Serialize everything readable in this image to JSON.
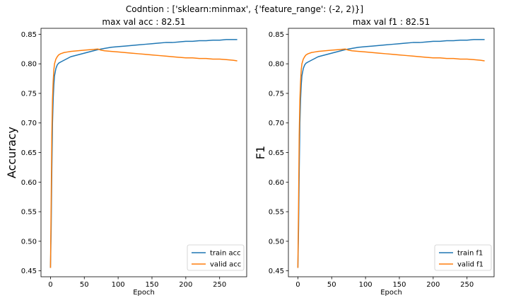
{
  "suptitle": "Codntion : ['sklearn:minmax', {'feature_range': (-2, 2)}]",
  "colors": {
    "train": "#1f77b4",
    "valid": "#ff7f0e"
  },
  "chart_data": [
    {
      "type": "line",
      "title": "max val acc : 82.51",
      "xlabel": "Epoch",
      "ylabel": "Accuracy",
      "xlim": [
        -14,
        290
      ],
      "ylim": [
        0.44,
        0.86
      ],
      "xticks": [
        0,
        50,
        100,
        150,
        200,
        250
      ],
      "yticks": [
        0.45,
        0.5,
        0.55,
        0.6,
        0.65,
        0.7,
        0.75,
        0.8,
        0.85
      ],
      "grid": false,
      "legend": "lower-right",
      "series": [
        {
          "name": "train acc",
          "color_key": "train",
          "x": [
            0,
            1,
            2,
            3,
            4,
            5,
            6,
            8,
            10,
            12,
            15,
            20,
            25,
            30,
            40,
            50,
            60,
            70,
            80,
            90,
            100,
            110,
            120,
            130,
            140,
            150,
            160,
            170,
            180,
            190,
            200,
            210,
            220,
            230,
            240,
            250,
            260,
            270,
            276
          ],
          "values": [
            0.455,
            0.52,
            0.62,
            0.7,
            0.74,
            0.765,
            0.78,
            0.792,
            0.798,
            0.801,
            0.803,
            0.806,
            0.809,
            0.812,
            0.815,
            0.818,
            0.821,
            0.824,
            0.826,
            0.828,
            0.829,
            0.83,
            0.831,
            0.832,
            0.833,
            0.834,
            0.835,
            0.836,
            0.836,
            0.837,
            0.838,
            0.838,
            0.839,
            0.839,
            0.84,
            0.84,
            0.841,
            0.841,
            0.841
          ]
        },
        {
          "name": "valid acc",
          "color_key": "valid",
          "x": [
            0,
            1,
            2,
            3,
            4,
            5,
            6,
            8,
            10,
            12,
            15,
            20,
            25,
            30,
            40,
            50,
            60,
            70,
            75,
            80,
            90,
            100,
            110,
            120,
            130,
            140,
            150,
            160,
            170,
            180,
            190,
            200,
            210,
            220,
            230,
            240,
            250,
            260,
            270,
            276
          ],
          "values": [
            0.455,
            0.56,
            0.68,
            0.74,
            0.77,
            0.79,
            0.8,
            0.808,
            0.812,
            0.815,
            0.817,
            0.819,
            0.82,
            0.821,
            0.822,
            0.823,
            0.824,
            0.825,
            0.823,
            0.822,
            0.821,
            0.82,
            0.819,
            0.818,
            0.817,
            0.816,
            0.815,
            0.814,
            0.813,
            0.812,
            0.811,
            0.81,
            0.81,
            0.809,
            0.809,
            0.808,
            0.808,
            0.807,
            0.806,
            0.805
          ]
        }
      ]
    },
    {
      "type": "line",
      "title": "max val f1 : 82.51",
      "xlabel": "Epoch",
      "ylabel": "F1",
      "xlim": [
        -14,
        290
      ],
      "ylim": [
        0.44,
        0.86
      ],
      "xticks": [
        0,
        50,
        100,
        150,
        200,
        250
      ],
      "yticks": [
        0.45,
        0.5,
        0.55,
        0.6,
        0.65,
        0.7,
        0.75,
        0.8,
        0.85
      ],
      "grid": false,
      "legend": "lower-right",
      "series": [
        {
          "name": "train f1",
          "color_key": "train",
          "x": [
            0,
            1,
            2,
            3,
            4,
            5,
            6,
            8,
            10,
            12,
            15,
            20,
            25,
            30,
            40,
            50,
            60,
            70,
            80,
            90,
            100,
            110,
            120,
            130,
            140,
            150,
            160,
            170,
            180,
            190,
            200,
            210,
            220,
            230,
            240,
            250,
            260,
            270,
            276
          ],
          "values": [
            0.455,
            0.52,
            0.62,
            0.7,
            0.74,
            0.765,
            0.78,
            0.792,
            0.798,
            0.801,
            0.803,
            0.806,
            0.809,
            0.812,
            0.815,
            0.818,
            0.821,
            0.824,
            0.826,
            0.828,
            0.829,
            0.83,
            0.831,
            0.832,
            0.833,
            0.834,
            0.835,
            0.836,
            0.836,
            0.837,
            0.838,
            0.838,
            0.839,
            0.839,
            0.84,
            0.84,
            0.841,
            0.841,
            0.841
          ]
        },
        {
          "name": "valid f1",
          "color_key": "valid",
          "x": [
            0,
            1,
            2,
            3,
            4,
            5,
            6,
            8,
            10,
            12,
            15,
            20,
            25,
            30,
            40,
            50,
            60,
            70,
            75,
            80,
            90,
            100,
            110,
            120,
            130,
            140,
            150,
            160,
            170,
            180,
            190,
            200,
            210,
            220,
            230,
            240,
            250,
            260,
            270,
            276
          ],
          "values": [
            0.455,
            0.56,
            0.68,
            0.74,
            0.77,
            0.79,
            0.8,
            0.808,
            0.812,
            0.815,
            0.817,
            0.819,
            0.82,
            0.821,
            0.822,
            0.823,
            0.824,
            0.825,
            0.823,
            0.822,
            0.821,
            0.82,
            0.819,
            0.818,
            0.817,
            0.816,
            0.815,
            0.814,
            0.813,
            0.812,
            0.811,
            0.81,
            0.81,
            0.809,
            0.809,
            0.808,
            0.808,
            0.807,
            0.806,
            0.805
          ]
        }
      ]
    }
  ]
}
